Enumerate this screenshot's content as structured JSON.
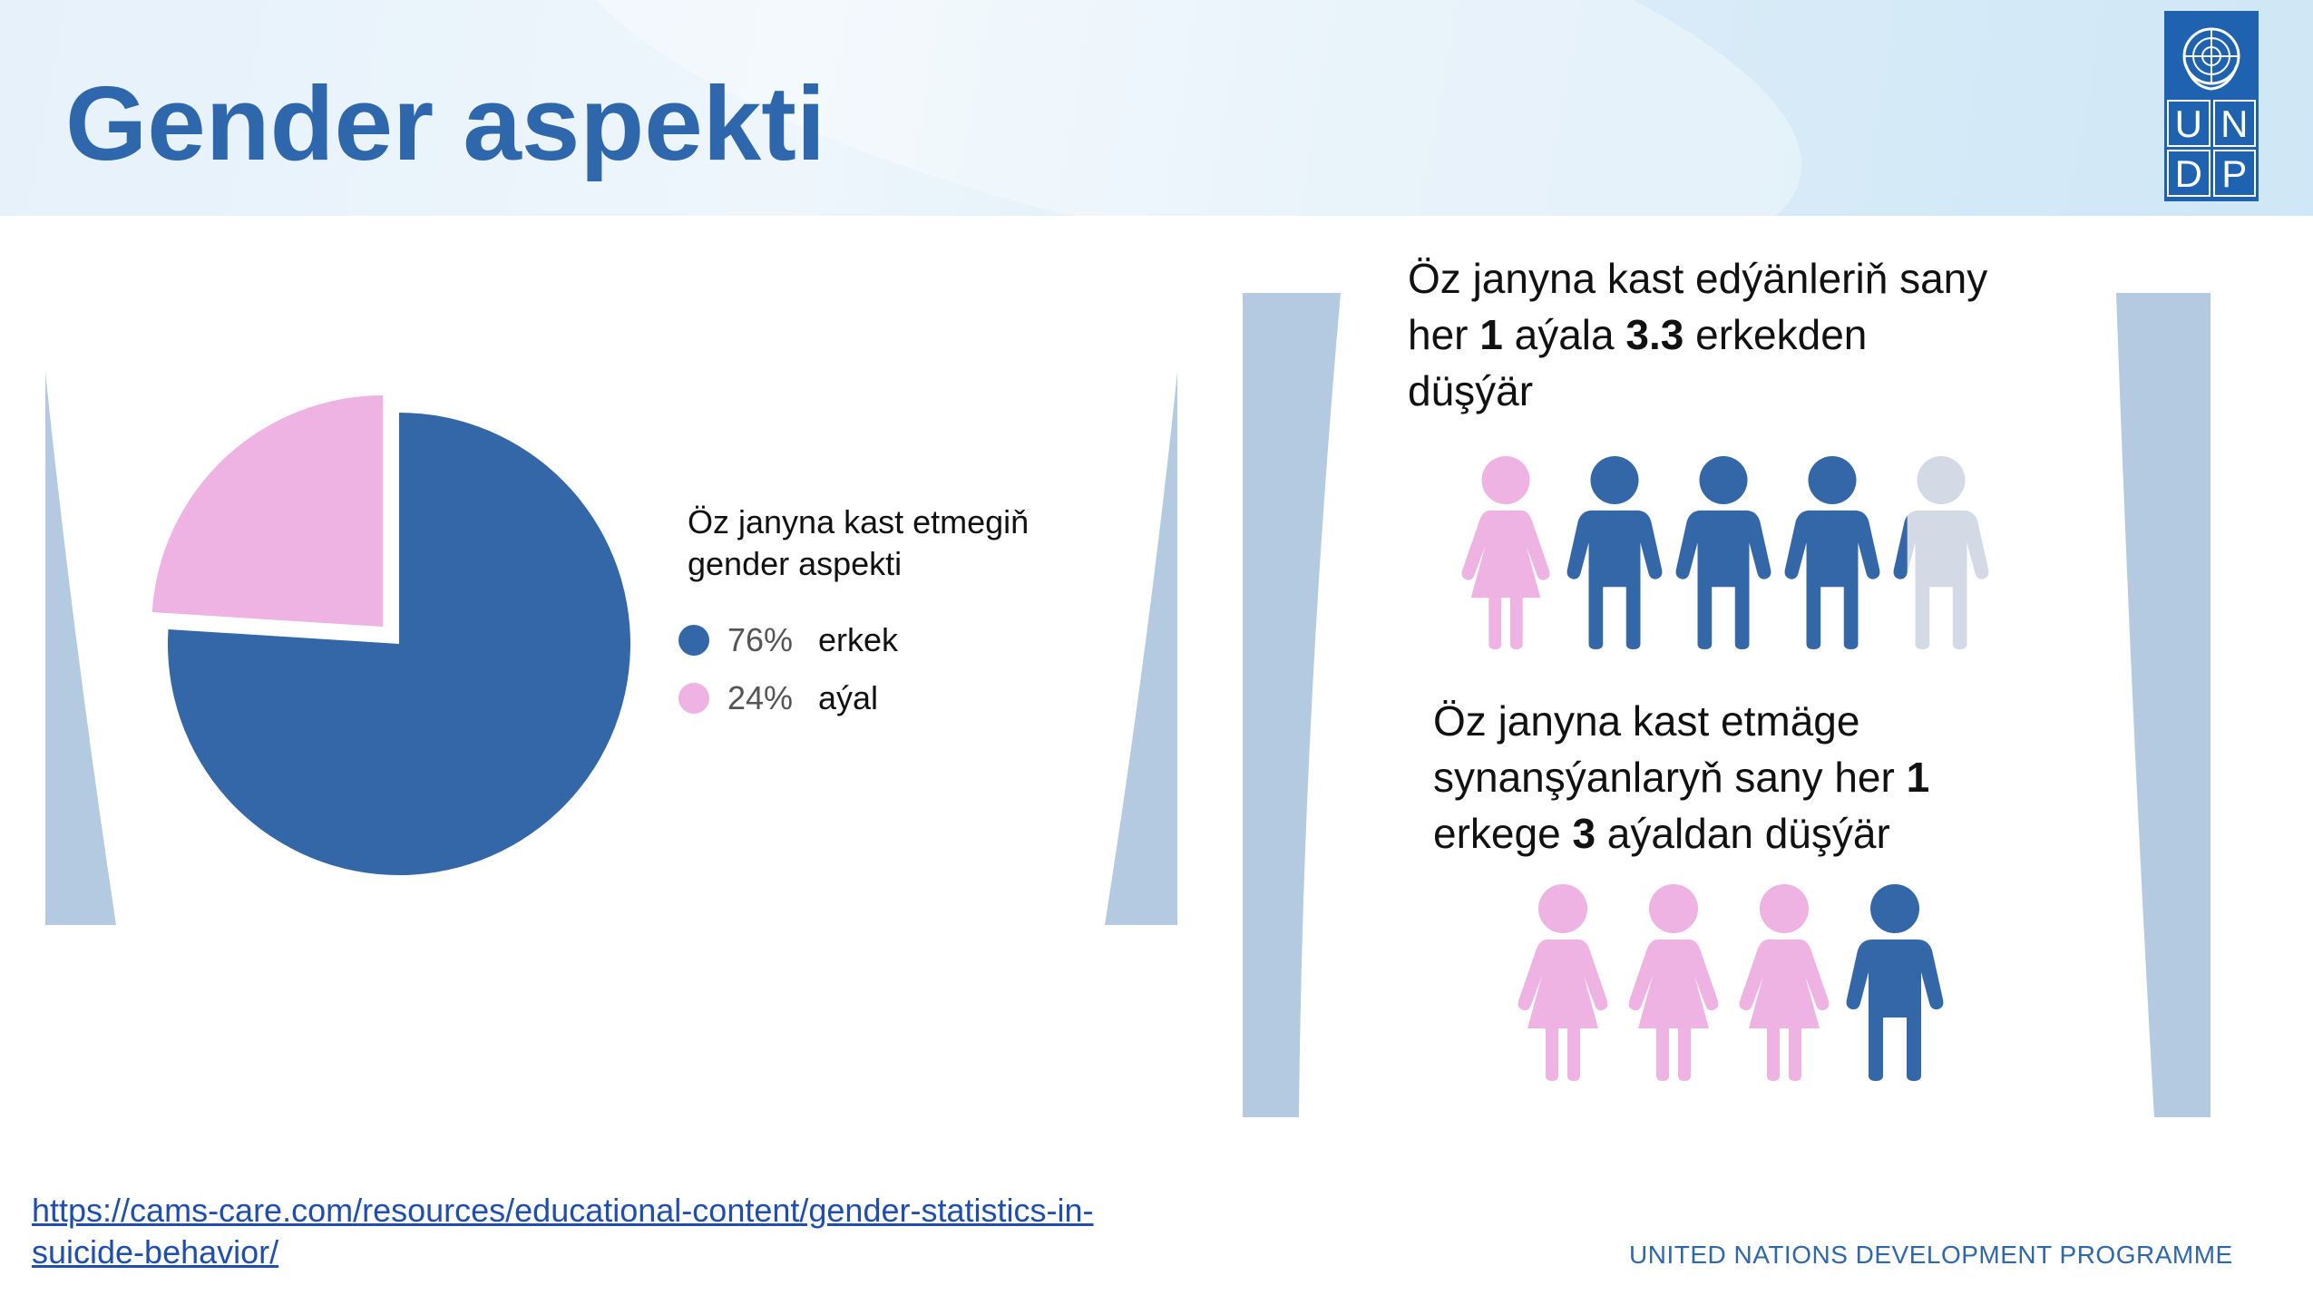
{
  "slide": {
    "title": "Gender aspekti",
    "logo_letters": [
      "U",
      "N",
      "D",
      "P"
    ],
    "footer_org": "UNITED NATIONS DEVELOPMENT PROGRAMME",
    "source_link": "https://cams-care.com/resources/educational-content/gender-statistics-in-suicide-behavior/"
  },
  "chart_data": {
    "type": "pie",
    "title": "Öz janyna kast etmegiň gender aspekti",
    "slices": [
      {
        "label": "erkek",
        "value": 76,
        "display": "76%",
        "color": "#3467a7"
      },
      {
        "label": "aýal",
        "value": 24,
        "display": "24%",
        "color": "#eeb2e3"
      }
    ],
    "legend_position": "right"
  },
  "stat1": {
    "line1": {
      "a": "Öz ",
      "b": "janyna kast",
      "c": " edýänleriň ",
      "d": "sany"
    },
    "line2": {
      "a": "her ",
      "num1": "1",
      "b": " aýala ",
      "num2": "3.3",
      "c": " erkekden"
    },
    "line3": "düşýär",
    "figures": {
      "women": 1,
      "men_full": 3,
      "men_partial_fraction": 0.3
    }
  },
  "stat2": {
    "line1": {
      "a": "Öz ",
      "b": "janyna kast",
      "c": " etmäge"
    },
    "line2": {
      "a": "synanşýanlaryň ",
      "b": "sany her ",
      "num1": "1"
    },
    "line3": {
      "a": "erkege ",
      "num2": "3",
      "b": " aýaldan düşýär"
    },
    "figures": {
      "women": 3,
      "men": 1
    }
  },
  "colors": {
    "male": "#3467a7",
    "female": "#eeb2e3",
    "neutral": "#d3dae5",
    "panel": "#b4cae1",
    "title": "#2f67ad"
  }
}
